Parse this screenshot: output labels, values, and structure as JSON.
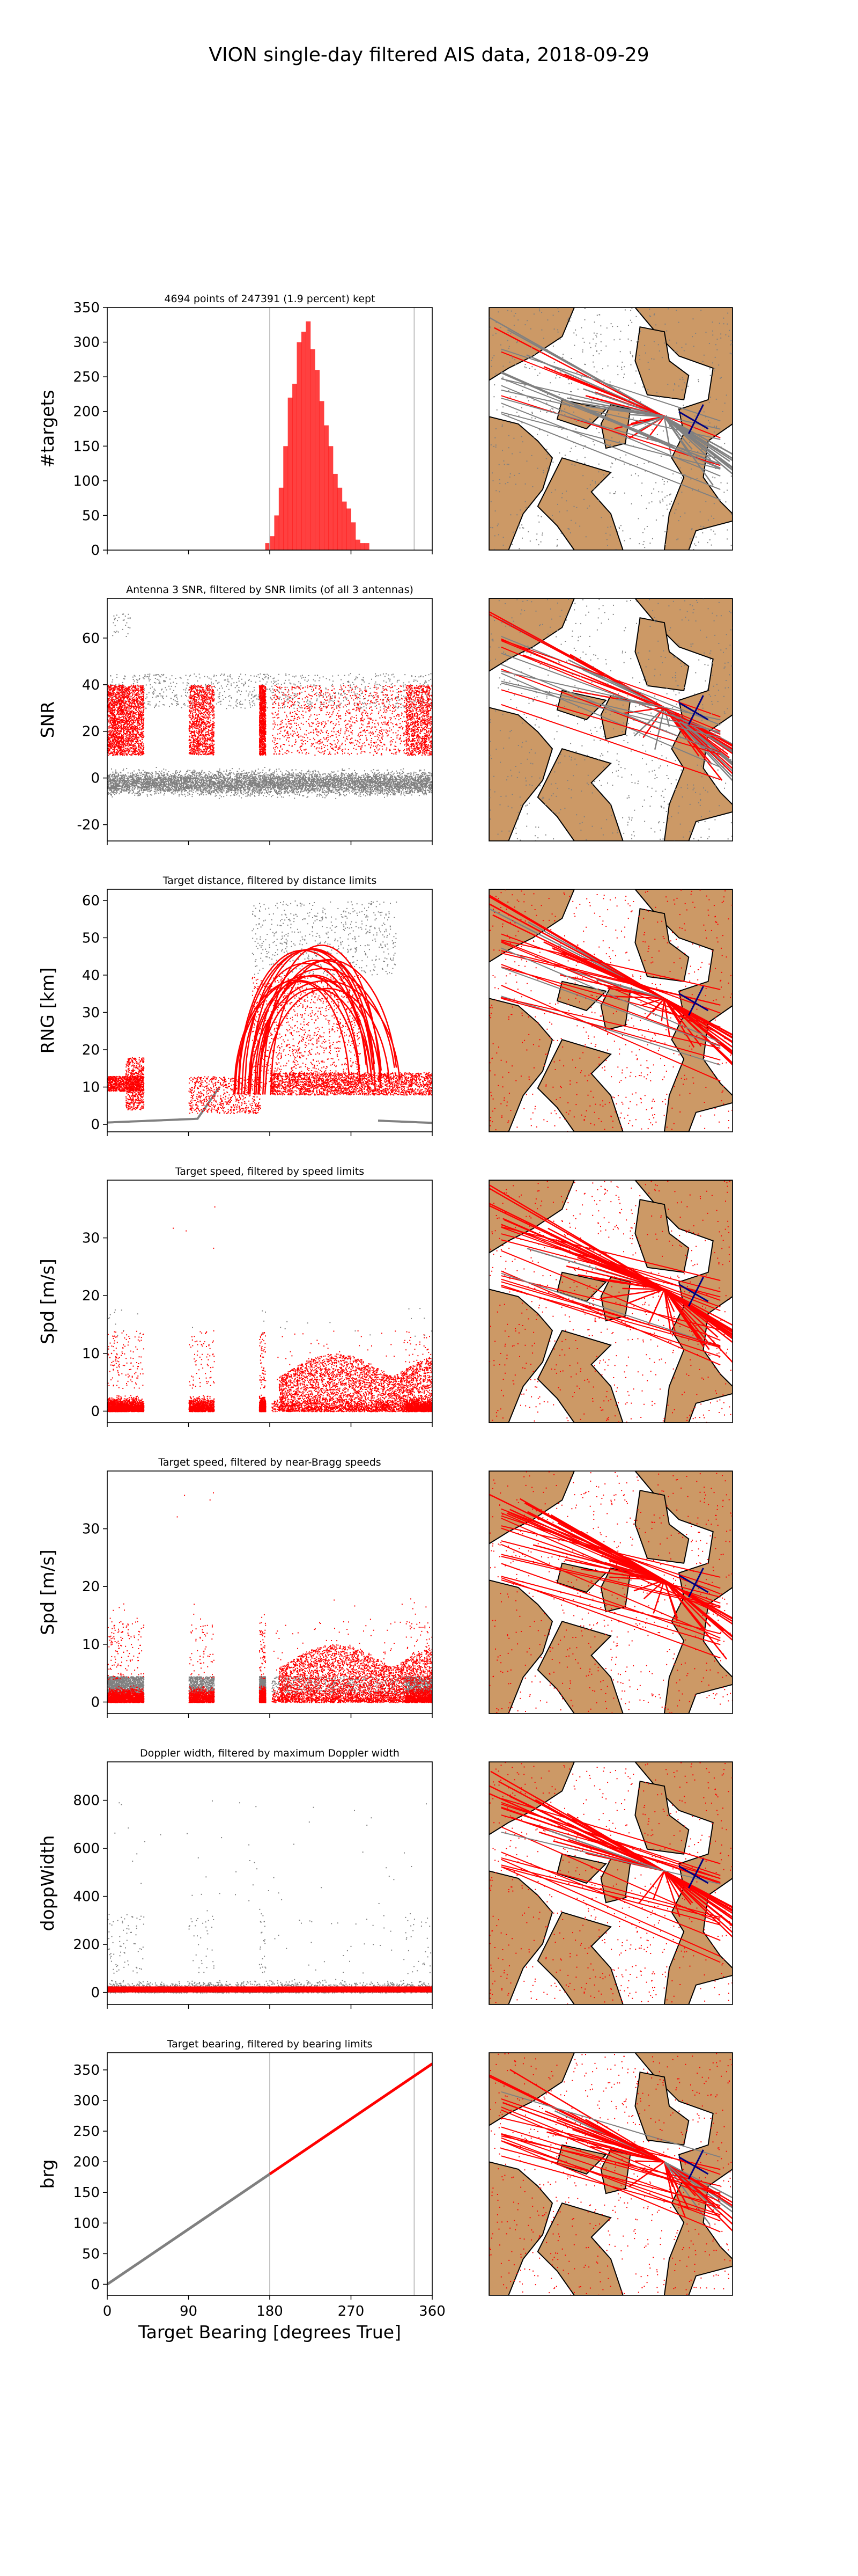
{
  "figure": {
    "title": "VION single-day filtered AIS data, 2018-09-29"
  },
  "colors": {
    "kept": "#ff0000",
    "rejected": "#808080",
    "land": "#cc9966",
    "water": "#ffffff",
    "ellipse": "#000080",
    "gridline": "#b0b0b0"
  },
  "shared_x": {
    "label": "Target Bearing [degrees True]",
    "ticks": [
      0,
      90,
      180,
      270,
      360
    ],
    "xlim": [
      0,
      360
    ],
    "limit_lines": [
      180,
      340
    ]
  },
  "chart_data": [
    {
      "type": "bar",
      "panel": "histogram",
      "title": "4694 points of 247391 (1.9 percent) kept",
      "xlabel": "",
      "ylabel": "#targets",
      "ylim": [
        0,
        350
      ],
      "yticks": [
        0,
        50,
        100,
        150,
        200,
        250,
        300,
        350
      ],
      "bins_start": 175,
      "bin_width": 5,
      "values": [
        10,
        20,
        50,
        90,
        150,
        220,
        240,
        300,
        315,
        330,
        290,
        260,
        215,
        180,
        150,
        110,
        90,
        70,
        60,
        40,
        15,
        10,
        10
      ],
      "gridlines_x": [
        180,
        340
      ]
    },
    {
      "type": "scatter",
      "panel": "snr",
      "title": "Antenna 3 SNR, filtered by SNR limits (of all 3 antennas)",
      "xlabel": "",
      "ylabel": "SNR",
      "ylim": [
        -27,
        77
      ],
      "yticks": [
        -20,
        0,
        20,
        40,
        60
      ],
      "series": [
        {
          "name": "",
          "color": "rejected",
          "description_range": [
            -20,
            45
          ]
        },
        {
          "name": "",
          "color": "kept",
          "description_range": [
            10,
            40
          ]
        }
      ]
    },
    {
      "type": "scatter",
      "panel": "range",
      "title": "Target distance, filtered by distance limits",
      "xlabel": "",
      "ylabel": "RNG [km]",
      "ylim": [
        -2,
        63
      ],
      "yticks": [
        0,
        10,
        20,
        30,
        40,
        50,
        60
      ]
    },
    {
      "type": "scatter",
      "panel": "speed",
      "title": "Target speed, filtered by speed limits",
      "xlabel": "",
      "ylabel": "Spd [m/s]",
      "ylim": [
        -2,
        40
      ],
      "yticks": [
        0,
        10,
        20,
        30
      ]
    },
    {
      "type": "scatter",
      "panel": "bragg",
      "title": "Target speed, filtered by near-Bragg speeds",
      "xlabel": "",
      "ylabel": "Spd [m/s]",
      "ylim": [
        -2,
        40
      ],
      "yticks": [
        0,
        10,
        20,
        30
      ]
    },
    {
      "type": "scatter",
      "panel": "doppler",
      "title": "Doppler width, filtered by maximum Doppler width",
      "xlabel": "",
      "ylabel": "doppWidth",
      "ylim": [
        -50,
        960
      ],
      "yticks": [
        0,
        200,
        400,
        600,
        800
      ]
    },
    {
      "type": "line",
      "panel": "bearing",
      "title": "Target bearing, filtered by bearing limits",
      "xlabel": "Target Bearing [degrees True]",
      "ylabel": "brg",
      "ylim": [
        -18,
        378
      ],
      "yticks": [
        0,
        50,
        100,
        150,
        200,
        250,
        300,
        350
      ],
      "series": [
        {
          "name": "",
          "color": "rejected",
          "x": [
            0,
            180
          ],
          "y": [
            0,
            180
          ]
        },
        {
          "name": "",
          "color": "kept",
          "x": [
            180,
            360
          ],
          "y": [
            180,
            360
          ]
        }
      ]
    }
  ]
}
